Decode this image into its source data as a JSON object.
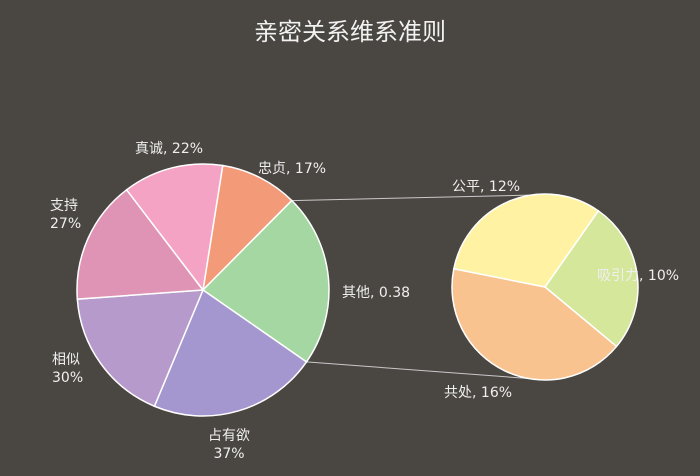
{
  "chart_data": {
    "type": "pie",
    "title": "亲密关系维系准则",
    "main_pie": {
      "slices": [
        {
          "label": "忠贞",
          "value": 0.17,
          "value_text": "17%",
          "color": "#f39a78"
        },
        {
          "label": "其他",
          "value": 0.38,
          "value_text": "0.38",
          "color": "#a4d7a1"
        },
        {
          "label": "占有欲",
          "value": 0.37,
          "value_text": "37%",
          "color": "#a496cf"
        },
        {
          "label": "相似",
          "value": 0.3,
          "value_text": "30%",
          "color": "#b69acb"
        },
        {
          "label": "支持",
          "value": 0.27,
          "value_text": "27%",
          "color": "#df93b5"
        },
        {
          "label": "真诚",
          "value": 0.22,
          "value_text": "22%",
          "color": "#f4a3c4"
        }
      ]
    },
    "secondary_pie": {
      "breakdown_of": "其他",
      "slices": [
        {
          "label": "吸引力",
          "value": 0.1,
          "value_text": "10%",
          "color": "#d5e79a"
        },
        {
          "label": "共处",
          "value": 0.16,
          "value_text": "16%",
          "color": "#f8c38f"
        },
        {
          "label": "公平",
          "value": 0.12,
          "value_text": "12%",
          "color": "#fff3a3"
        }
      ]
    }
  }
}
